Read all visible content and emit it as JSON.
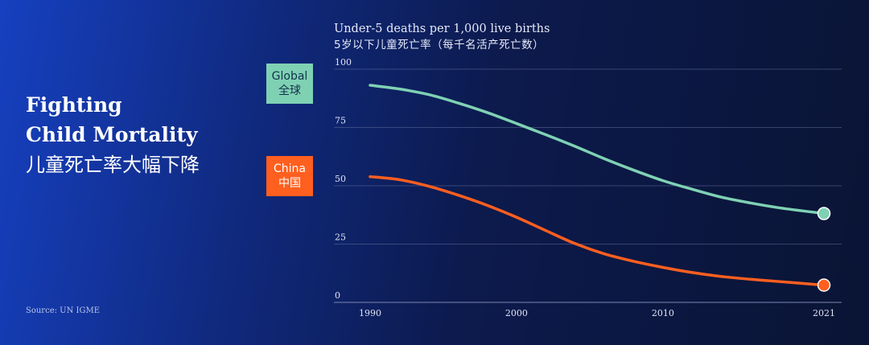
{
  "title": {
    "line1": "Fighting",
    "line2": "Child Mortality",
    "cn": "儿童死亡率大幅下降"
  },
  "source": "Source: UN IGME",
  "labels": {
    "global_en": "Global",
    "global_cn": "全球",
    "china_en": "China",
    "china_cn": "中国"
  },
  "colors": {
    "global": "#7fd1b4",
    "china": "#ff5f1f",
    "grid": "#6f7ba8"
  },
  "chart_data": {
    "type": "line",
    "ylabel": "Under-5 deaths per 1,000 live births",
    "ylabel_cn": "5岁以下儿童死亡率（每千名活产死亡数）",
    "x_ticks": [
      "1990",
      "2000",
      "2010",
      "2021"
    ],
    "y_ticks": [
      "100",
      "75",
      "50",
      "25",
      "0"
    ],
    "xlim": [
      1990,
      2021
    ],
    "ylim": [
      0,
      100
    ],
    "grid": true,
    "series": [
      {
        "name": "Global",
        "color": "#7fd1b4",
        "x": [
          1990,
          1992,
          1994,
          1996,
          1998,
          2000,
          2002,
          2004,
          2006,
          2008,
          2010,
          2012,
          2014,
          2016,
          2018,
          2021
        ],
        "values": [
          93.1,
          91.5,
          89.1,
          85.5,
          81.4,
          76.7,
          71.9,
          66.9,
          61.6,
          56.7,
          52.2,
          48.5,
          45.1,
          42.6,
          40.5,
          38.1
        ]
      },
      {
        "name": "China",
        "color": "#ff5f1f",
        "x": [
          1990,
          1992,
          1994,
          1996,
          1998,
          2000,
          2002,
          2004,
          2006,
          2008,
          2010,
          2012,
          2014,
          2016,
          2018,
          2021
        ],
        "values": [
          53.9,
          52.6,
          49.8,
          46.0,
          41.6,
          36.5,
          30.8,
          25.2,
          20.8,
          17.6,
          15.0,
          12.8,
          11.1,
          9.9,
          8.9,
          7.4
        ]
      }
    ]
  }
}
